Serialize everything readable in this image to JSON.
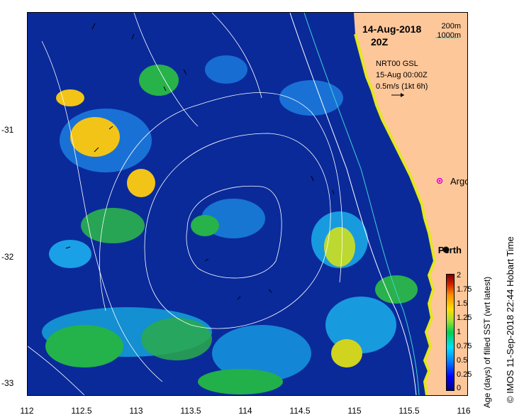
{
  "header": {
    "date": "14-Aug-2018",
    "time": "20Z"
  },
  "depth_legend": {
    "line1": "200m",
    "line2": "1000m",
    "line1_color": "#ffffff",
    "line2_color": "#3fd3d3"
  },
  "currents": {
    "source": "NRT00 GSL",
    "datetime": "15-Aug 00:00Z",
    "scale": "0.5m/s (1kt 6h)"
  },
  "markers": {
    "argo": "Argo",
    "perth": "Perth",
    "argo_color": "#e000e0"
  },
  "axes": {
    "x_ticks": [
      "112",
      "112.5",
      "113",
      "113.5",
      "114",
      "114.5",
      "115",
      "115.5",
      "116"
    ],
    "y_ticks": [
      "-31",
      "-32",
      "-33"
    ]
  },
  "colorbar": {
    "ticks": [
      "2",
      "1.75",
      "1.5",
      "1.25",
      "1",
      "0.75",
      "0.5",
      "0.25",
      "0"
    ],
    "label": "Age (days) of filled SST (wrt latest)"
  },
  "credit": "© IMOS 11-Sep-2018 22:44 Hobart Time",
  "colors": {
    "land": "#fdc79a",
    "ocean_base": "#0a2a9a",
    "coast_yellow": "#e6e61e"
  }
}
